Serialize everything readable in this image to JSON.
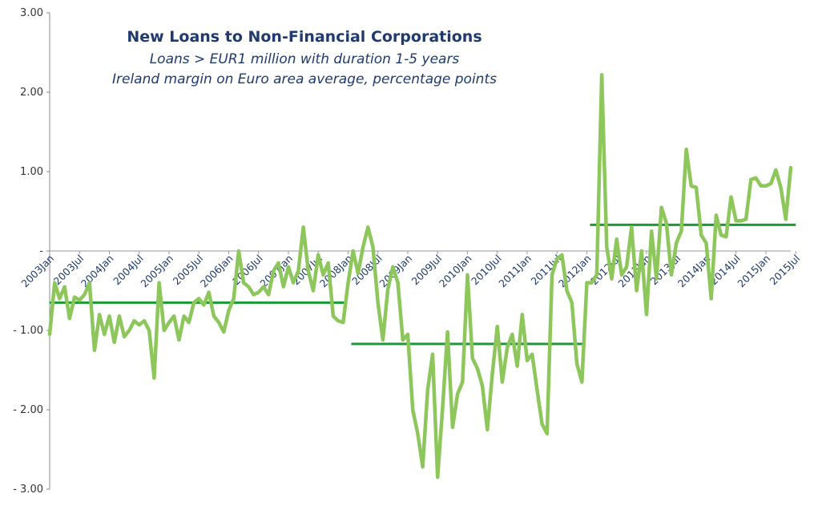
{
  "chart_data": {
    "type": "line",
    "title": "New Loans to Non-Financial Corporations",
    "subtitle_lines": [
      "Loans > EUR1 million with duration 1-5 years",
      "Ireland margin on Euro area average, percentage points"
    ],
    "ylim": [
      -3,
      3
    ],
    "y_ticks": [
      3,
      2,
      1,
      0,
      -1,
      -2,
      -3
    ],
    "y_tick_labels": [
      "3.00",
      "2.00",
      "1.00",
      "-",
      "- 1.00",
      "- 2.00",
      "- 3.00"
    ],
    "x_tick_labels": [
      "2003Jan",
      "2003Jul",
      "2004Jan",
      "2004Jul",
      "2005Jan",
      "2005Jul",
      "2006Jan",
      "2006Jul",
      "2007Jan",
      "2007Jul",
      "2008Jan",
      "2008Jul",
      "2009Jan",
      "2009Jul",
      "2010Jan",
      "2010Jul",
      "2011Jan",
      "2011Jul",
      "2012Jan",
      "2012Jul",
      "2013Jan",
      "2013Jul",
      "2014Jan",
      "2014Jul",
      "2015Jan",
      "2015Jul"
    ],
    "series": [
      {
        "color": "#8dc65a",
        "start": "2003Jan",
        "frequency": "monthly",
        "values": [
          -1.05,
          -0.4,
          -0.6,
          -0.45,
          -0.85,
          -0.58,
          -0.62,
          -0.55,
          -0.4,
          -1.25,
          -0.8,
          -1.05,
          -0.82,
          -1.15,
          -0.82,
          -1.08,
          -1.0,
          -0.88,
          -0.93,
          -0.88,
          -1.0,
          -1.6,
          -0.4,
          -1.0,
          -0.9,
          -0.82,
          -1.12,
          -0.82,
          -0.9,
          -0.65,
          -0.6,
          -0.68,
          -0.52,
          -0.82,
          -0.9,
          -1.02,
          -0.75,
          -0.6,
          0.0,
          -0.4,
          -0.45,
          -0.55,
          -0.52,
          -0.45,
          -0.55,
          -0.25,
          -0.15,
          -0.45,
          -0.2,
          -0.4,
          -0.25,
          0.3,
          -0.25,
          -0.5,
          -0.05,
          -0.3,
          -0.15,
          -0.82,
          -0.88,
          -0.9,
          -0.4,
          0.0,
          -0.28,
          0.05,
          0.3,
          0.05,
          -0.65,
          -1.12,
          -0.48,
          -0.2,
          -0.4,
          -1.12,
          -1.05,
          -2.0,
          -2.3,
          -2.72,
          -1.75,
          -1.3,
          -2.85,
          -1.98,
          -1.02,
          -2.22,
          -1.8,
          -1.65,
          -0.3,
          -1.35,
          -1.48,
          -1.7,
          -2.25,
          -1.55,
          -0.95,
          -1.65,
          -1.22,
          -1.05,
          -1.45,
          -0.8,
          -1.38,
          -1.3,
          -1.75,
          -2.18,
          -2.3,
          -0.3,
          -0.1,
          -0.05,
          -0.5,
          -0.65,
          -1.42,
          -1.65,
          -0.4,
          -0.4,
          -0.3,
          2.22,
          0.05,
          -0.35,
          0.15,
          -0.3,
          -0.2,
          0.3,
          -0.5,
          0.0,
          -0.8,
          0.25,
          -0.35,
          0.55,
          0.35,
          -0.3,
          0.1,
          0.25,
          1.28,
          0.82,
          0.8,
          0.2,
          0.1,
          -0.6,
          0.45,
          0.2,
          0.18,
          0.68,
          0.38,
          0.38,
          0.4,
          0.9,
          0.92,
          0.82,
          0.82,
          0.85,
          1.02,
          0.8,
          0.4,
          1.05
        ]
      },
      {
        "color": "#1a9a34",
        "segments": [
          {
            "from": "2003Jan",
            "to": "2008Jan",
            "value": -0.65
          },
          {
            "from": "2008Jan",
            "to": "2012Jan",
            "value": -1.17
          },
          {
            "from": "2012Jan",
            "to": "2015Jul",
            "value": 0.33
          }
        ]
      }
    ],
    "grid": false,
    "legend": "none"
  }
}
